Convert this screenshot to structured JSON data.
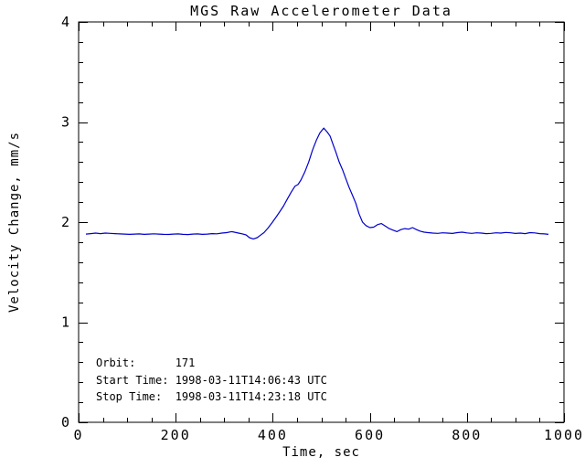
{
  "window": {
    "background": "#ffffff",
    "text_color": "#000000"
  },
  "chart_data": {
    "type": "line",
    "title": "MGS Raw Accelerometer Data",
    "xlabel": "Time, sec",
    "ylabel": "Velocity Change, mm/s",
    "xlim": [
      0,
      1000
    ],
    "ylim": [
      0,
      4
    ],
    "xticks": [
      0,
      200,
      400,
      600,
      800,
      1000
    ],
    "yticks": [
      0,
      1,
      2,
      3,
      4
    ],
    "x_minor_step": 50,
    "y_minor_step": 0.2,
    "grid": false,
    "legend": "none",
    "axis_color": "#000000",
    "line_color": "#0000cc",
    "annotations": {
      "lines": [
        "Orbit:      171",
        "Start Time: 1998-03-11T14:06:43 UTC",
        "Stop Time:  1998-03-11T14:23:18 UTC"
      ]
    },
    "series": [
      {
        "name": "velocity_change_mm_s",
        "points": [
          [
            15,
            1.88
          ],
          [
            25,
            1.885
          ],
          [
            35,
            1.89
          ],
          [
            45,
            1.885
          ],
          [
            55,
            1.89
          ],
          [
            65,
            1.888
          ],
          [
            75,
            1.885
          ],
          [
            85,
            1.882
          ],
          [
            95,
            1.88
          ],
          [
            105,
            1.878
          ],
          [
            115,
            1.88
          ],
          [
            125,
            1.882
          ],
          [
            135,
            1.878
          ],
          [
            145,
            1.88
          ],
          [
            155,
            1.883
          ],
          [
            165,
            1.88
          ],
          [
            175,
            1.878
          ],
          [
            185,
            1.877
          ],
          [
            195,
            1.88
          ],
          [
            205,
            1.882
          ],
          [
            215,
            1.878
          ],
          [
            225,
            1.876
          ],
          [
            235,
            1.88
          ],
          [
            245,
            1.882
          ],
          [
            255,
            1.878
          ],
          [
            265,
            1.88
          ],
          [
            275,
            1.885
          ],
          [
            285,
            1.883
          ],
          [
            295,
            1.89
          ],
          [
            305,
            1.895
          ],
          [
            315,
            1.905
          ],
          [
            325,
            1.895
          ],
          [
            335,
            1.885
          ],
          [
            345,
            1.872
          ],
          [
            352,
            1.845
          ],
          [
            360,
            1.832
          ],
          [
            368,
            1.845
          ],
          [
            375,
            1.87
          ],
          [
            382,
            1.895
          ],
          [
            390,
            1.94
          ],
          [
            398,
            1.99
          ],
          [
            406,
            2.045
          ],
          [
            414,
            2.1
          ],
          [
            422,
            2.16
          ],
          [
            430,
            2.23
          ],
          [
            438,
            2.3
          ],
          [
            446,
            2.36
          ],
          [
            452,
            2.375
          ],
          [
            458,
            2.42
          ],
          [
            466,
            2.5
          ],
          [
            474,
            2.6
          ],
          [
            482,
            2.72
          ],
          [
            490,
            2.82
          ],
          [
            497,
            2.89
          ],
          [
            505,
            2.94
          ],
          [
            512,
            2.9
          ],
          [
            518,
            2.86
          ],
          [
            524,
            2.78
          ],
          [
            530,
            2.7
          ],
          [
            537,
            2.6
          ],
          [
            544,
            2.52
          ],
          [
            550,
            2.44
          ],
          [
            557,
            2.35
          ],
          [
            564,
            2.27
          ],
          [
            571,
            2.19
          ],
          [
            578,
            2.08
          ],
          [
            585,
            2.0
          ],
          [
            592,
            1.965
          ],
          [
            600,
            1.945
          ],
          [
            608,
            1.95
          ],
          [
            616,
            1.975
          ],
          [
            624,
            1.985
          ],
          [
            632,
            1.96
          ],
          [
            640,
            1.935
          ],
          [
            648,
            1.92
          ],
          [
            656,
            1.905
          ],
          [
            664,
            1.925
          ],
          [
            672,
            1.935
          ],
          [
            680,
            1.93
          ],
          [
            688,
            1.945
          ],
          [
            696,
            1.925
          ],
          [
            704,
            1.91
          ],
          [
            712,
            1.9
          ],
          [
            720,
            1.895
          ],
          [
            730,
            1.89
          ],
          [
            740,
            1.888
          ],
          [
            750,
            1.893
          ],
          [
            760,
            1.89
          ],
          [
            770,
            1.887
          ],
          [
            780,
            1.895
          ],
          [
            790,
            1.9
          ],
          [
            800,
            1.892
          ],
          [
            810,
            1.888
          ],
          [
            820,
            1.893
          ],
          [
            830,
            1.89
          ],
          [
            840,
            1.885
          ],
          [
            850,
            1.888
          ],
          [
            860,
            1.893
          ],
          [
            870,
            1.89
          ],
          [
            880,
            1.897
          ],
          [
            890,
            1.893
          ],
          [
            900,
            1.887
          ],
          [
            910,
            1.89
          ],
          [
            920,
            1.885
          ],
          [
            930,
            1.895
          ],
          [
            940,
            1.892
          ],
          [
            950,
            1.885
          ],
          [
            960,
            1.882
          ],
          [
            968,
            1.878
          ]
        ]
      }
    ]
  }
}
